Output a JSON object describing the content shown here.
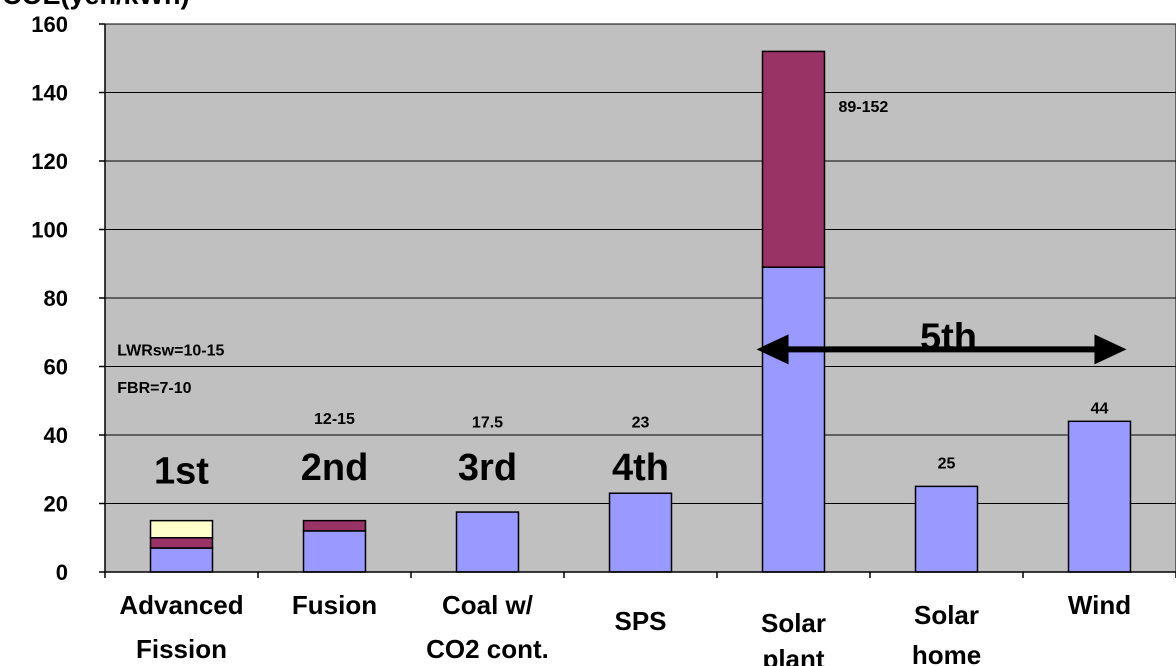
{
  "chart_data": {
    "type": "bar",
    "stacked": true,
    "title": "",
    "ylabel": "COE(yen/kWh)",
    "xlabel": "",
    "ylim": [
      0,
      160
    ],
    "yticks": [
      0,
      20,
      40,
      60,
      80,
      100,
      120,
      140,
      160
    ],
    "grid": true,
    "legend": "none",
    "plot_background": "#c0c0c0",
    "categories": [
      [
        "Advanced",
        "Fission"
      ],
      [
        "Fusion"
      ],
      [
        "Coal w/",
        "CO2 cont."
      ],
      [
        "SPS"
      ],
      [
        "Solar",
        "plant"
      ],
      [
        "Solar",
        "home"
      ],
      [
        "Wind"
      ]
    ],
    "series": [
      {
        "color": "#9999ff",
        "values": [
          7,
          12,
          17.5,
          23,
          89,
          25,
          44
        ]
      },
      {
        "color": "#993366",
        "values": [
          3,
          3,
          0,
          0,
          63,
          0,
          0
        ]
      },
      {
        "color": "#ffffcc",
        "values": [
          5,
          0,
          0,
          0,
          0,
          0,
          0
        ]
      }
    ],
    "data_labels": [
      {
        "text": "LWRsw=10-15",
        "bar": 0,
        "y": 65,
        "size": 16
      },
      {
        "text": "FBR=7-10",
        "bar": 0,
        "y": 54,
        "size": 16
      },
      {
        "text": "12-15",
        "bar": 1,
        "y": 45,
        "size": 16
      },
      {
        "text": "17.5",
        "bar": 2,
        "y": 44,
        "size": 16
      },
      {
        "text": "23",
        "bar": 3,
        "y": 44,
        "size": 16
      },
      {
        "text": "89-152",
        "bar": 4,
        "y": 136,
        "size": 16
      },
      {
        "text": "25",
        "bar": 5,
        "y": 32,
        "size": 16
      },
      {
        "text": "44",
        "bar": 6,
        "y": 48,
        "size": 16
      }
    ],
    "generation_labels": [
      {
        "text": "1st",
        "bar": 0,
        "y": 30
      },
      {
        "text": "2nd",
        "bar": 1,
        "y": 31
      },
      {
        "text": "3rd",
        "bar": 2,
        "y": 31
      },
      {
        "text": "4th",
        "bar": 3,
        "y": 31
      },
      {
        "text": "5th",
        "bar": 5,
        "y": 69
      }
    ],
    "range_arrow": {
      "from_bar": 4,
      "to_bar": 6,
      "y": 65
    }
  }
}
